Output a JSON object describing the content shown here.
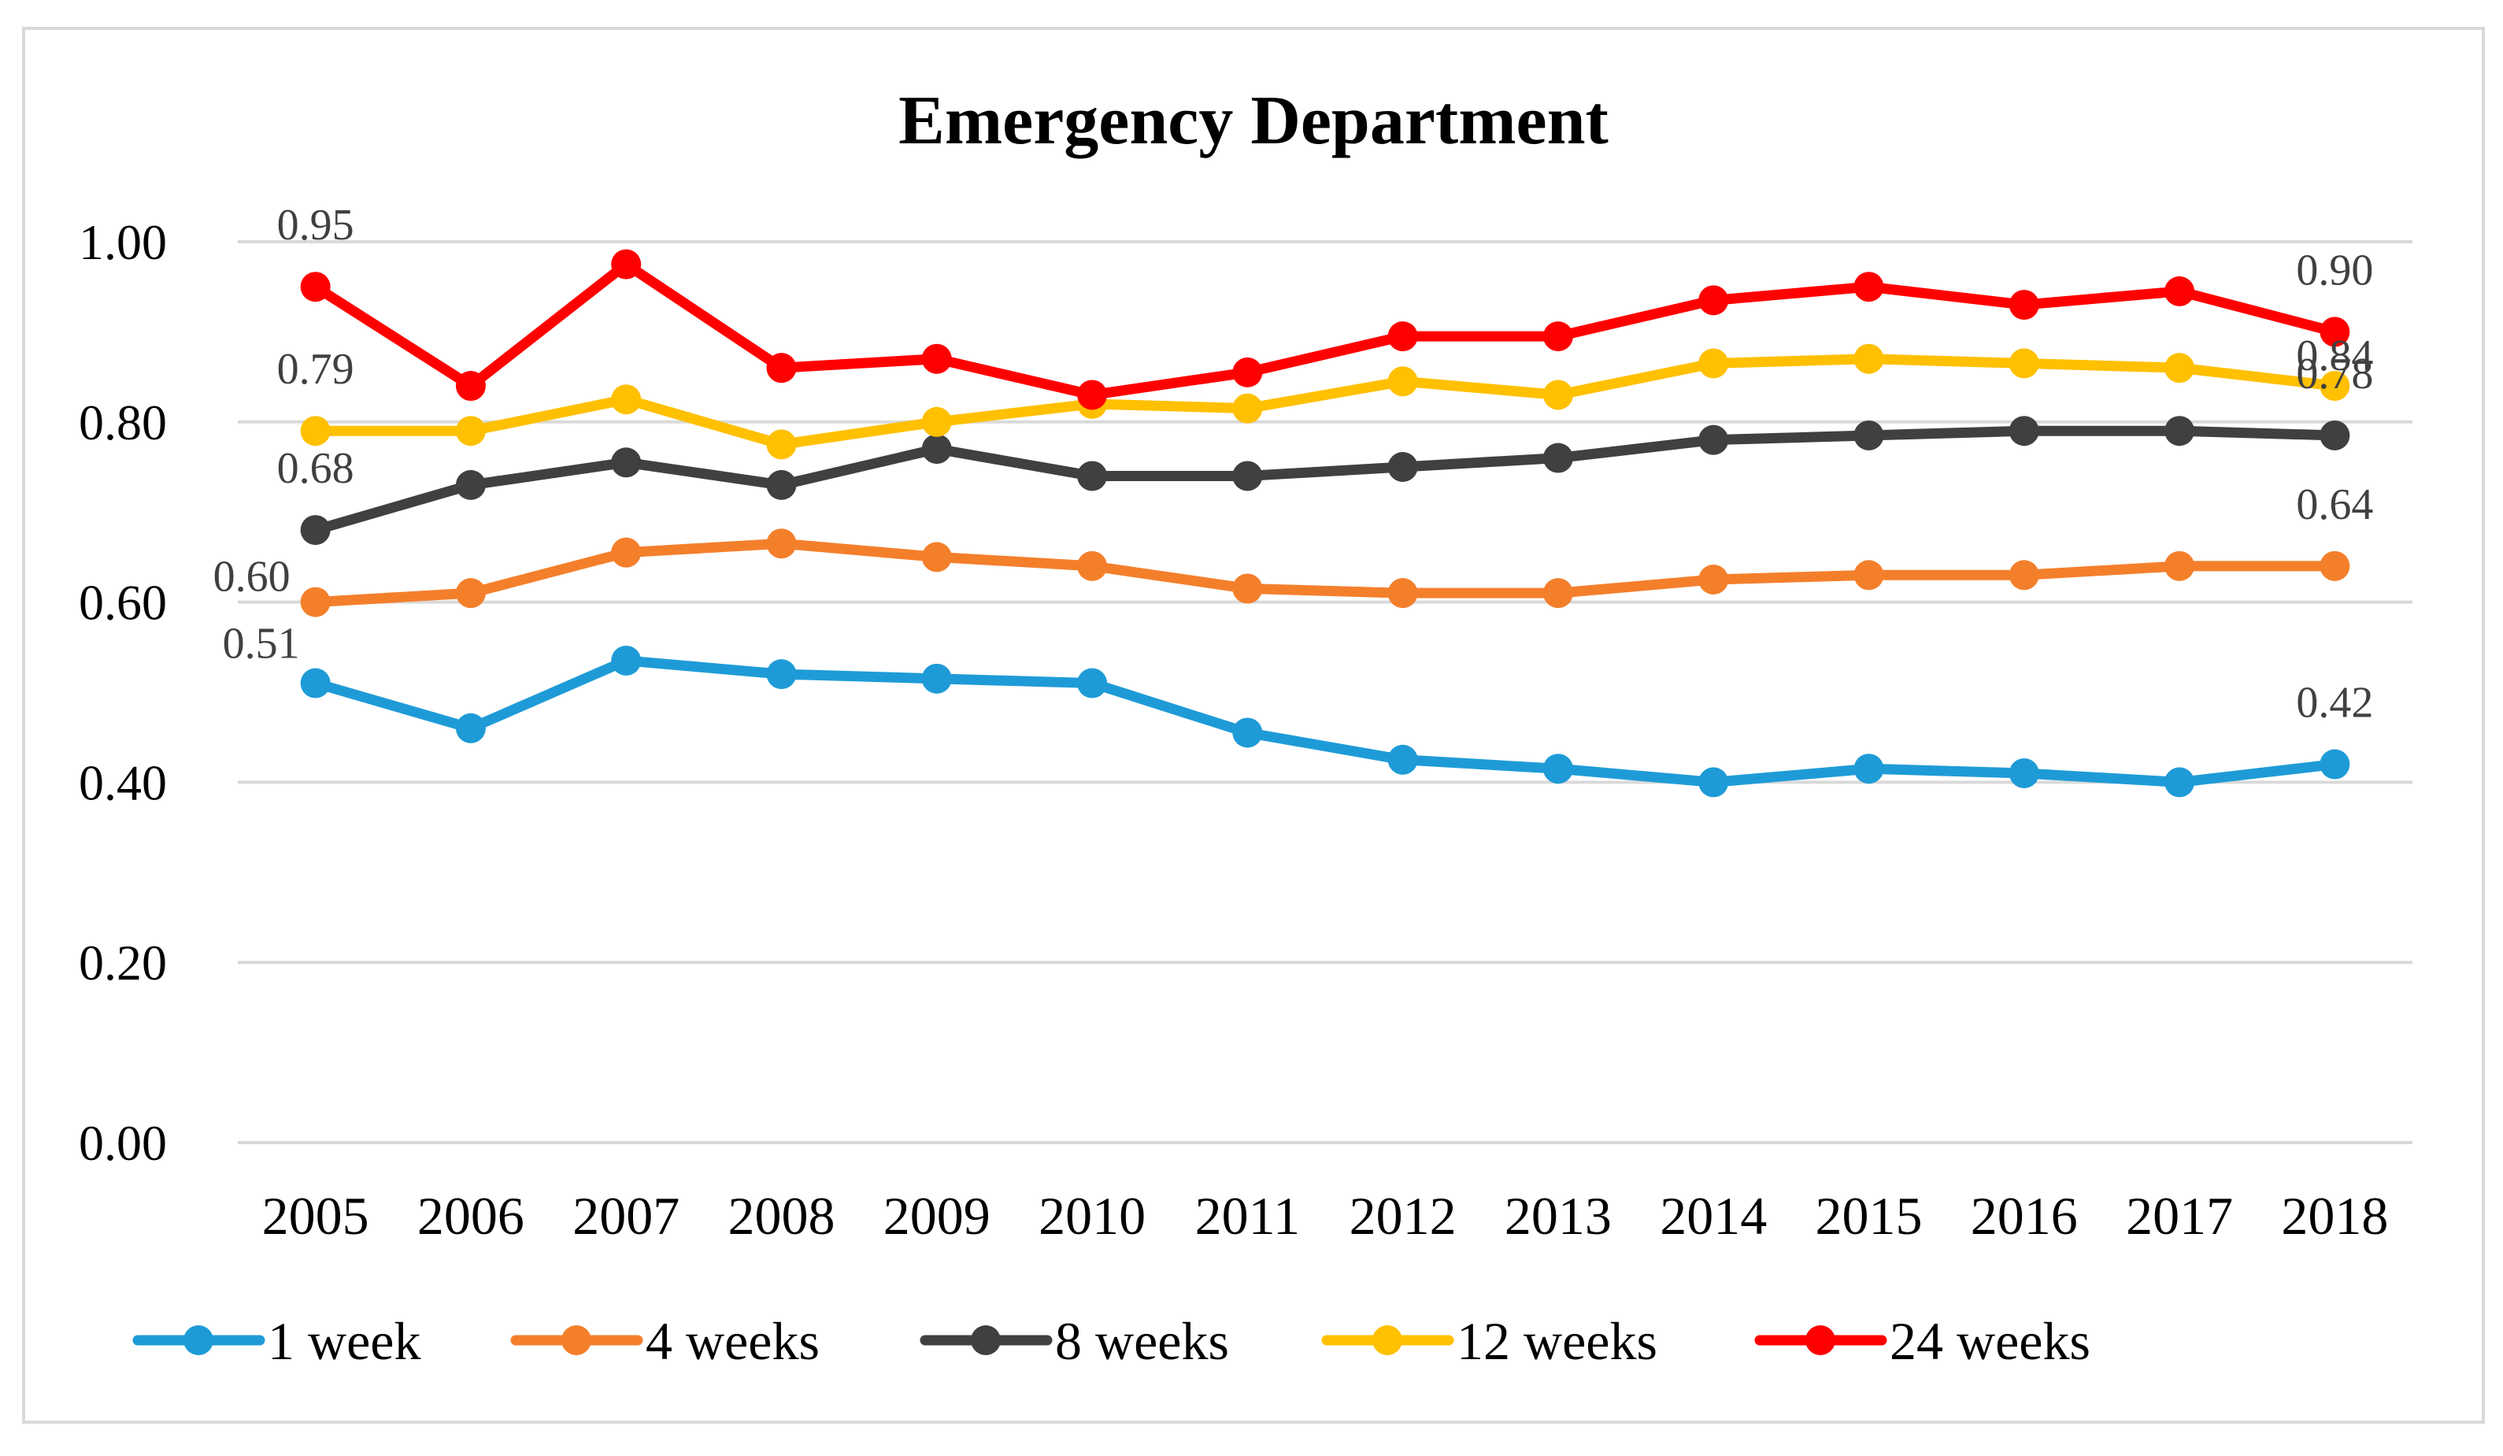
{
  "chart_data": {
    "type": "line",
    "title": "Emergency Department",
    "xlabel": "",
    "ylabel": "",
    "ylim": [
      0,
      1
    ],
    "yticks": [
      "0.00",
      "0.20",
      "0.40",
      "0.60",
      "0.80",
      "1.00"
    ],
    "grid": true,
    "legend_position": "bottom",
    "categories": [
      "2005",
      "2006",
      "2007",
      "2008",
      "2009",
      "2010",
      "2011",
      "2012",
      "2013",
      "2014",
      "2015",
      "2016",
      "2017",
      "2018"
    ],
    "series": [
      {
        "name": "1 week",
        "color": "#1E9BD7",
        "values": [
          0.51,
          0.46,
          0.535,
          0.52,
          0.515,
          0.51,
          0.455,
          0.425,
          0.415,
          0.4,
          0.415,
          0.41,
          0.4,
          0.42
        ],
        "labels": [
          {
            "index": 0,
            "text": "0.51"
          },
          {
            "index": 13,
            "text": "0.42"
          }
        ]
      },
      {
        "name": "4 weeks",
        "color": "#F47F2B",
        "values": [
          0.6,
          0.61,
          0.655,
          0.665,
          0.65,
          0.64,
          0.615,
          0.61,
          0.61,
          0.625,
          0.63,
          0.63,
          0.64,
          0.64
        ],
        "labels": [
          {
            "index": 0,
            "text": "0.60"
          },
          {
            "index": 13,
            "text": "0.64"
          }
        ]
      },
      {
        "name": "8 weeks",
        "color": "#404040",
        "values": [
          0.68,
          0.73,
          0.755,
          0.73,
          0.77,
          0.74,
          0.74,
          0.75,
          0.76,
          0.78,
          0.785,
          0.79,
          0.79,
          0.785
        ],
        "labels": [
          {
            "index": 0,
            "text": "0.68"
          },
          {
            "index": 13,
            "text": "0.78"
          }
        ]
      },
      {
        "name": "12 weeks",
        "color": "#FFC000",
        "values": [
          0.79,
          0.79,
          0.825,
          0.775,
          0.8,
          0.82,
          0.815,
          0.845,
          0.83,
          0.865,
          0.87,
          0.865,
          0.86,
          0.84
        ],
        "labels": [
          {
            "index": 0,
            "text": "0.79"
          },
          {
            "index": 13,
            "text": "0.84"
          }
        ]
      },
      {
        "name": "24 weeks",
        "color": "#FF0000",
        "values": [
          0.95,
          0.84,
          0.975,
          0.86,
          0.87,
          0.83,
          0.855,
          0.895,
          0.895,
          0.935,
          0.95,
          0.93,
          0.945,
          0.9
        ],
        "labels": [
          {
            "index": 0,
            "text": "0.95"
          },
          {
            "index": 13,
            "text": "0.90"
          }
        ]
      }
    ]
  }
}
